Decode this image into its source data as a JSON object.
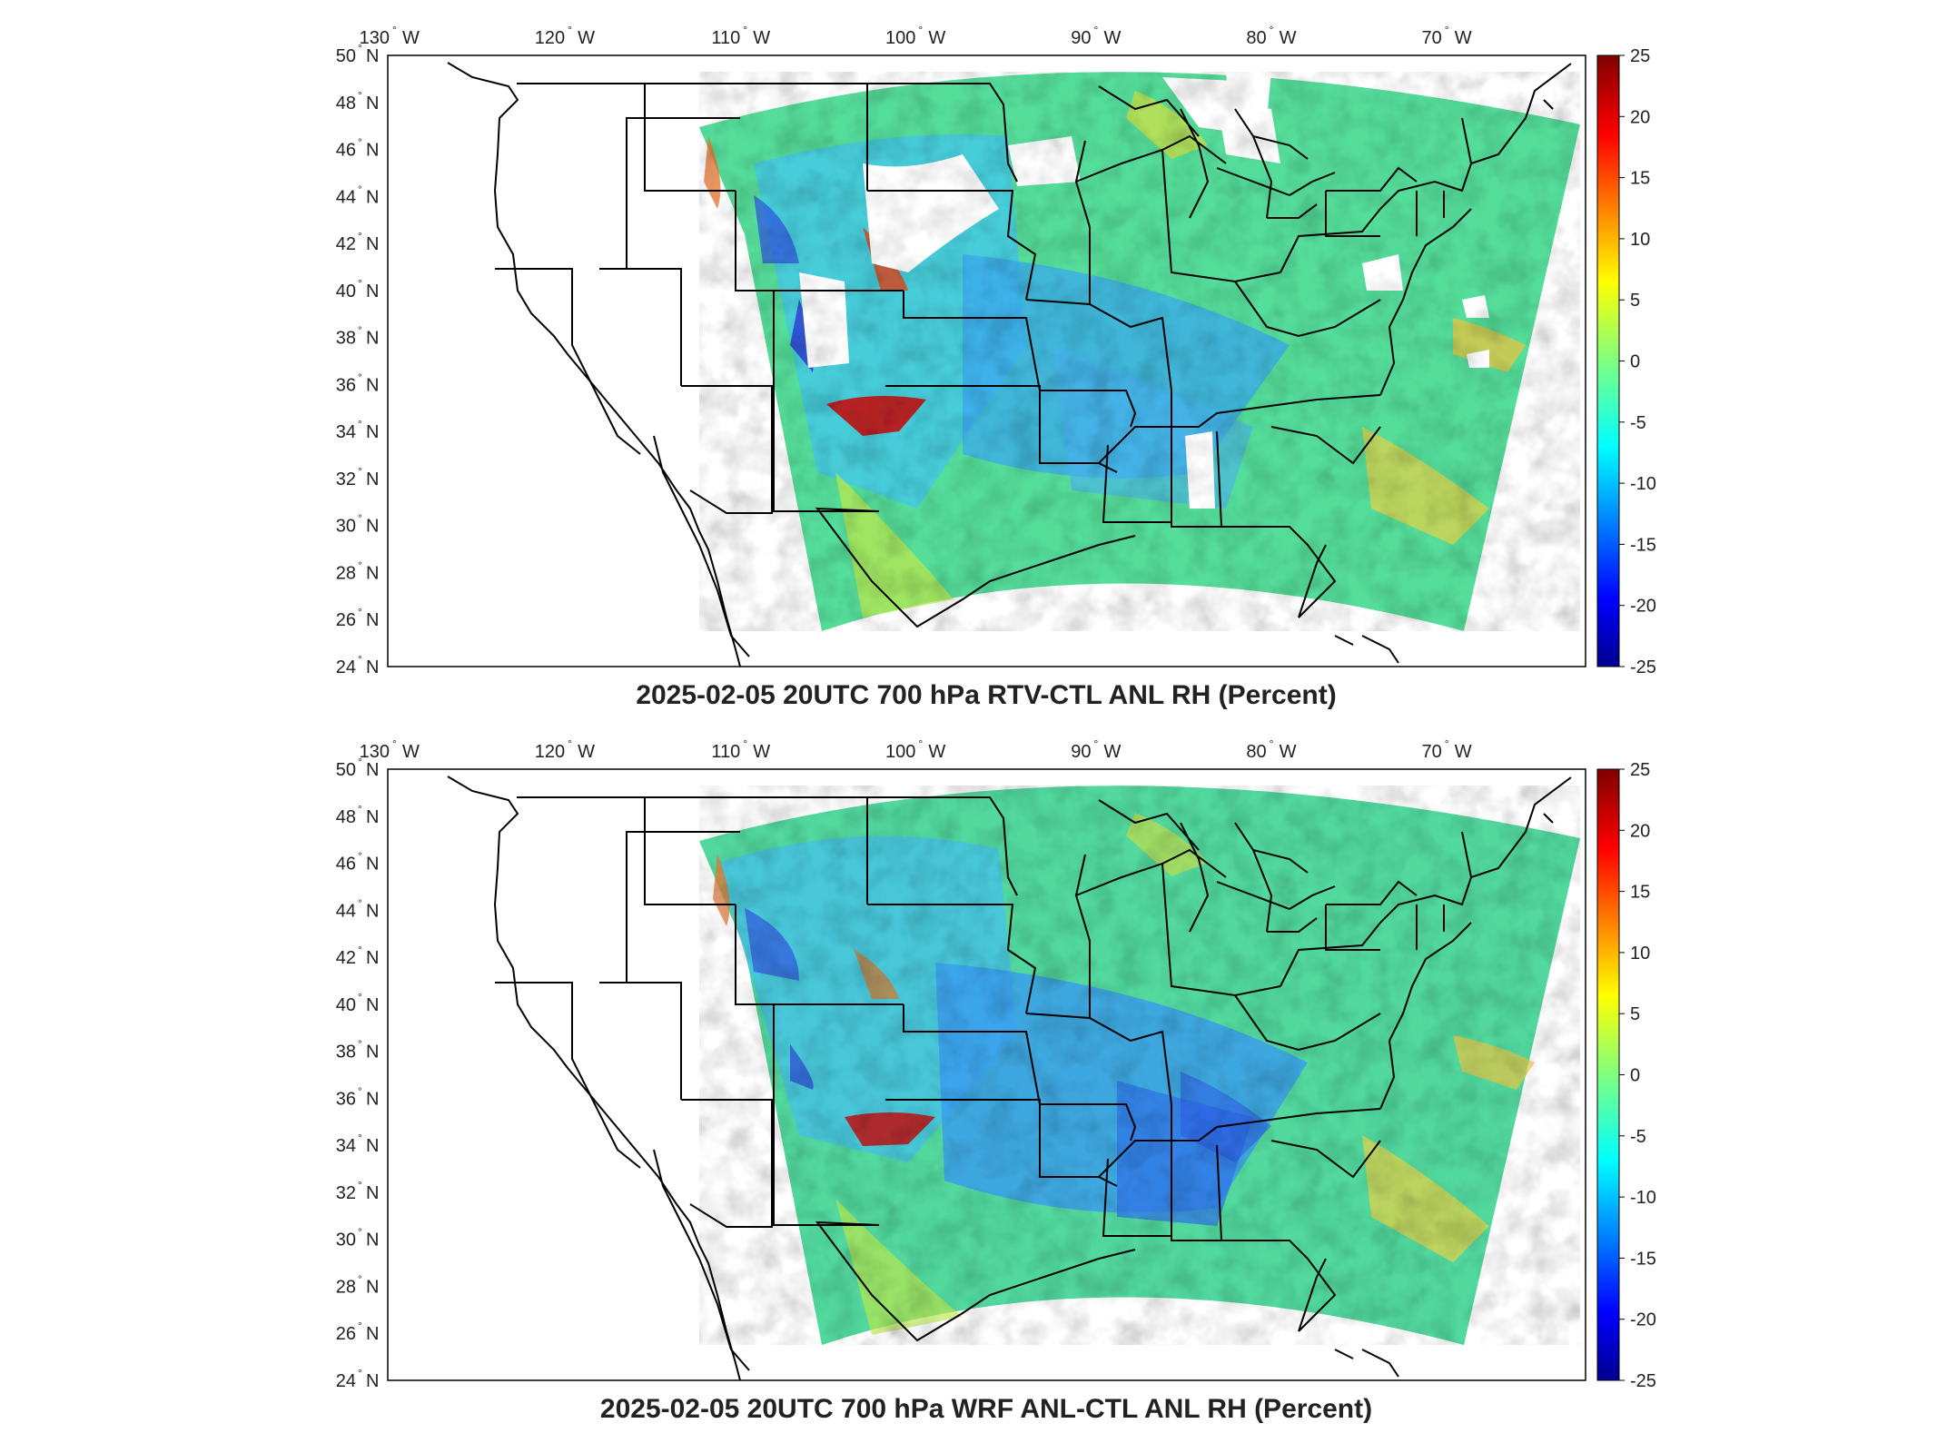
{
  "figure": {
    "panels": [
      {
        "id": "top",
        "title": "2025-02-05 20UTC 700 hPa RTV-CTL ANL RH (Percent)",
        "missing_data": true
      },
      {
        "id": "bottom",
        "title": "2025-02-05 20UTC 700 hPa WRF ANL-CTL ANL RH (Percent)",
        "missing_data": false
      }
    ],
    "lon_ticks": [
      {
        "value": -130,
        "num": "130",
        "dir": "W"
      },
      {
        "value": -120,
        "num": "120",
        "dir": "W"
      },
      {
        "value": -110,
        "num": "110",
        "dir": "W"
      },
      {
        "value": -100,
        "num": "100",
        "dir": "W"
      },
      {
        "value": -90,
        "num": "90",
        "dir": "W"
      },
      {
        "value": -80,
        "num": "80",
        "dir": "W"
      },
      {
        "value": -70,
        "num": "70",
        "dir": "W"
      }
    ],
    "lat_ticks": [
      {
        "value": 50,
        "num": "50",
        "dir": "N"
      },
      {
        "value": 48,
        "num": "48",
        "dir": "N"
      },
      {
        "value": 46,
        "num": "46",
        "dir": "N"
      },
      {
        "value": 44,
        "num": "44",
        "dir": "N"
      },
      {
        "value": 42,
        "num": "42",
        "dir": "N"
      },
      {
        "value": 40,
        "num": "40",
        "dir": "N"
      },
      {
        "value": 38,
        "num": "38",
        "dir": "N"
      },
      {
        "value": 36,
        "num": "36",
        "dir": "N"
      },
      {
        "value": 34,
        "num": "34",
        "dir": "N"
      },
      {
        "value": 32,
        "num": "32",
        "dir": "N"
      },
      {
        "value": 30,
        "num": "30",
        "dir": "N"
      },
      {
        "value": 28,
        "num": "28",
        "dir": "N"
      },
      {
        "value": 26,
        "num": "26",
        "dir": "N"
      },
      {
        "value": 24,
        "num": "24",
        "dir": "N"
      }
    ],
    "degree_symbol": "°",
    "colorbar": {
      "ticks": [
        "25",
        "20",
        "15",
        "10",
        "5",
        "0",
        "-5",
        "-10",
        "-15",
        "-20",
        "-25"
      ],
      "colormap": [
        "#00008f",
        "#0000ff",
        "#006fff",
        "#00dfff",
        "#4fffaf",
        "#bfff3f",
        "#ffcf00",
        "#ff6000",
        "#ef0000",
        "#800000"
      ]
    },
    "colors": {
      "coastline": "#000000",
      "missing": "#ffffff",
      "frame": "#000000"
    }
  }
}
